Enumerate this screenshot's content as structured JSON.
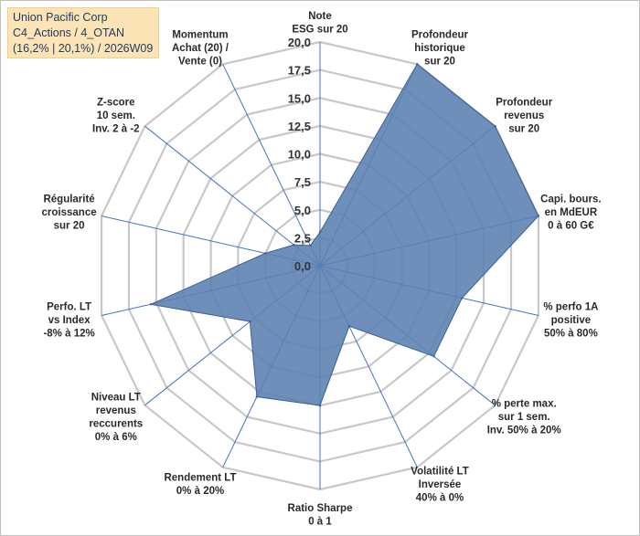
{
  "title_box": {
    "line1": "Union Pacific Corp",
    "line2": "C4_Actions / 4_OTAN",
    "line3": "(16,2% | 20,1%) / 2026W09"
  },
  "colors": {
    "fill": "#5b7fb2",
    "stroke": "#3d5f93",
    "grid": "#c8c8c8",
    "spoke": "#4472c4",
    "title_bg": "#fce4b6"
  },
  "chart_data": {
    "type": "radar",
    "rmax": 20,
    "ticks": [
      "0,0",
      "2,5",
      "5,0",
      "7,5",
      "10,0",
      "12,5",
      "15,0",
      "17,5",
      "20,0"
    ],
    "axes": [
      {
        "label": [
          "Note",
          "ESG sur 20"
        ],
        "value": 3
      },
      {
        "label": [
          "Profondeur",
          "historique",
          "sur 20"
        ],
        "value": 20
      },
      {
        "label": [
          "Profondeur",
          "revenus",
          "sur 20"
        ],
        "value": 20
      },
      {
        "label": [
          "Capi. bours.",
          "en MdEUR",
          "0 à 60 G€"
        ],
        "value": 20
      },
      {
        "label": [
          "% perfo 1A",
          "positive",
          "50% à 80%"
        ],
        "value": 13
      },
      {
        "label": [
          "% perte max.",
          "sur 1 sem.",
          "Inv. 50% à 20%"
        ],
        "value": 13
      },
      {
        "label": [
          "Volatilité LT",
          "Inversée",
          "40% à 0%"
        ],
        "value": 6
      },
      {
        "label": [
          "Ratio Sharpe",
          "0 à 1"
        ],
        "value": 12.5
      },
      {
        "label": [
          "Rendement LT",
          "0% à 20%"
        ],
        "value": 13
      },
      {
        "label": [
          "Niveau LT",
          "revenus",
          "reccurents",
          "0% à 6%"
        ],
        "value": 8
      },
      {
        "label": [
          "Perfo. LT",
          "vs Index",
          "-8% à 12%"
        ],
        "value": 15.5
      },
      {
        "label": [
          "Régularité",
          "croissance",
          "sur 20"
        ],
        "value": 5
      },
      {
        "label": [
          "Z-score",
          "10 sem.",
          "Inv. 2 à -2"
        ],
        "value": 3
      },
      {
        "label": [
          "Momentum",
          "Achat (20) /",
          "Vente (0)"
        ],
        "value": 2
      }
    ]
  }
}
